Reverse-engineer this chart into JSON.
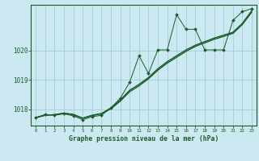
{
  "title": "Graphe pression niveau de la mer (hPa)",
  "bg_color": "#cce8f0",
  "grid_color": "#aacfe0",
  "line_color": "#1a5c2a",
  "xlim": [
    -0.5,
    23.5
  ],
  "ylim": [
    1017.45,
    1021.55
  ],
  "yticks": [
    1018,
    1019,
    1020
  ],
  "xticks": [
    0,
    1,
    2,
    3,
    4,
    5,
    6,
    7,
    8,
    9,
    10,
    11,
    12,
    13,
    14,
    15,
    16,
    17,
    18,
    19,
    20,
    21,
    22,
    23
  ],
  "s1_x": [
    0,
    1,
    2,
    3,
    4,
    5,
    6,
    7,
    8,
    9,
    10,
    11,
    12,
    13,
    14,
    15,
    16,
    17,
    18,
    19,
    20,
    21,
    22,
    23
  ],
  "s1_y": [
    1017.72,
    1017.83,
    1017.8,
    1017.85,
    1017.78,
    1017.65,
    1017.75,
    1017.8,
    1018.05,
    1018.38,
    1018.92,
    1019.82,
    1019.22,
    1020.02,
    1020.02,
    1021.22,
    1020.72,
    1020.72,
    1020.02,
    1020.02,
    1020.02,
    1021.02,
    1021.32,
    1021.42
  ],
  "s2_x": [
    0,
    1,
    2,
    3,
    4,
    5,
    6,
    7,
    8,
    9,
    10,
    11,
    12,
    13,
    14,
    15,
    16,
    17,
    18,
    19,
    20,
    21,
    22,
    23
  ],
  "s2_y": [
    1017.72,
    1017.8,
    1017.82,
    1017.87,
    1017.83,
    1017.7,
    1017.8,
    1017.86,
    1018.05,
    1018.32,
    1018.65,
    1018.85,
    1019.08,
    1019.38,
    1019.62,
    1019.82,
    1020.02,
    1020.18,
    1020.3,
    1020.42,
    1020.52,
    1020.62,
    1020.92,
    1021.35
  ],
  "s3_x": [
    0,
    1,
    2,
    3,
    4,
    5,
    6,
    7,
    8,
    9,
    10,
    11,
    12,
    13,
    14,
    15,
    16,
    17,
    18,
    19,
    20,
    21,
    22,
    23
  ],
  "s3_y": [
    1017.72,
    1017.8,
    1017.82,
    1017.87,
    1017.82,
    1017.7,
    1017.79,
    1017.85,
    1018.02,
    1018.28,
    1018.6,
    1018.8,
    1019.04,
    1019.33,
    1019.57,
    1019.77,
    1019.97,
    1020.14,
    1020.26,
    1020.38,
    1020.48,
    1020.58,
    1020.88,
    1021.3
  ]
}
